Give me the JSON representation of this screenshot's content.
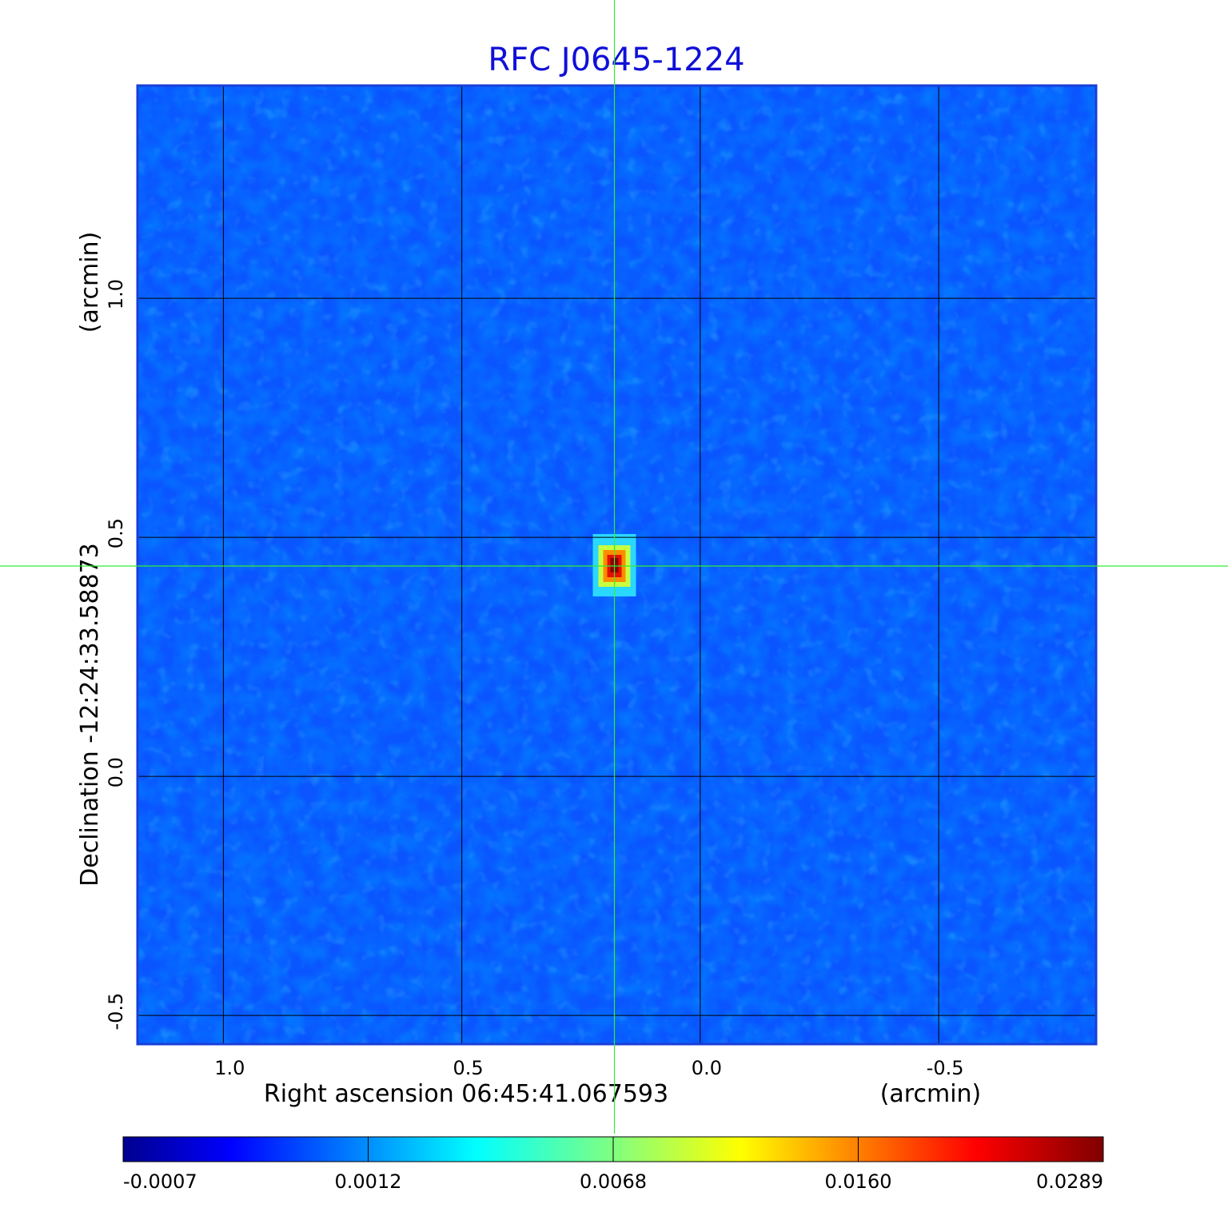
{
  "colors": {
    "title": "#1010d8",
    "crosshair": "#33ee33",
    "grid": "#000000",
    "frame": "#1a3fd8",
    "background_map": "#0a55ff"
  },
  "chart_data": {
    "type": "heatmap",
    "title": "RFC J0645-1224",
    "colormap": "jet",
    "x_axis": {
      "label_left": "Right ascension  06:45:41.067593",
      "label_right": "(arcmin)",
      "range": [
        1.18,
        -0.83
      ],
      "ticks": [
        1.0,
        0.5,
        0.0,
        -0.5
      ],
      "tick_labels": [
        "1.0",
        "0.5",
        "0.0",
        "-0.5"
      ],
      "reversed": true
    },
    "y_axis": {
      "label_left": "Declination  -12:24:33.58873",
      "label_right": "(arcmin)",
      "range": [
        -0.56,
        1.445
      ],
      "ticks": [
        -0.5,
        0.0,
        0.5,
        1.0
      ],
      "tick_labels": [
        "-0.5",
        "0.0",
        "0.5",
        "1.0"
      ]
    },
    "grid": true,
    "crosshair": {
      "x": 0.18,
      "y": 0.44
    },
    "source": {
      "x": 0.18,
      "y": 0.44,
      "peak": 0.0289
    },
    "colorbar": {
      "position": "bottom",
      "tick_labels": [
        "-0.0007",
        "0.0012",
        "0.0068",
        "0.0160",
        "0.0289"
      ]
    }
  }
}
